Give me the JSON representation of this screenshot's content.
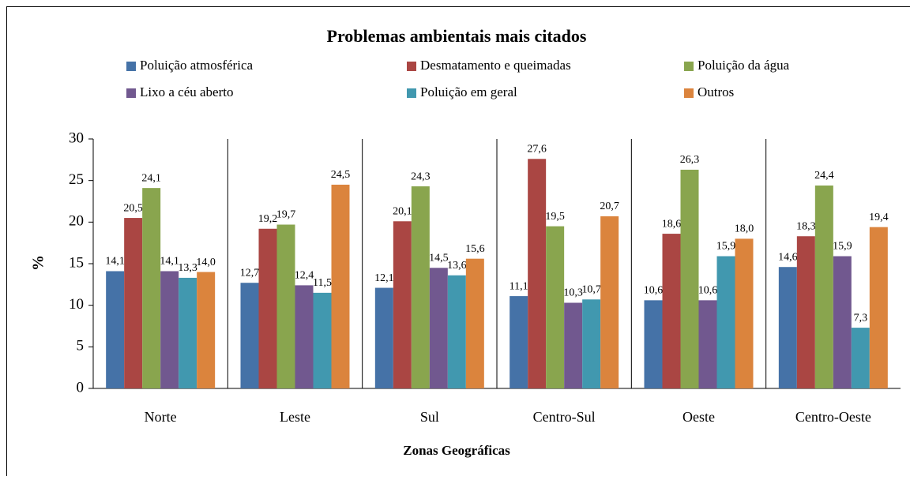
{
  "chart_data": {
    "type": "bar",
    "title": "Problemas ambientais mais citados",
    "x_label": "Zonas Geográficas",
    "y_label": "%",
    "categories": [
      "Norte",
      "Leste",
      "Sul",
      "Centro-Sul",
      "Oeste",
      "Centro-Oeste"
    ],
    "ylim": [
      0,
      30
    ],
    "yticks": [
      0,
      5,
      10,
      15,
      20,
      25,
      30
    ],
    "grid": false,
    "series": [
      {
        "name": "Poluição atmosférica",
        "color": "#4572a7",
        "values": [
          14.1,
          12.7,
          12.1,
          11.1,
          10.6,
          14.6
        ],
        "value_labels": [
          "14,1",
          "12,7",
          "12,1",
          "11,1",
          "10,6",
          "14,6"
        ]
      },
      {
        "name": "Desmatamento e queimadas",
        "color": "#aa4643",
        "values": [
          20.5,
          19.2,
          20.1,
          27.6,
          18.6,
          18.3
        ],
        "value_labels": [
          "20,5",
          "19,2",
          "20,1",
          "27,6",
          "18,6",
          "18,3"
        ]
      },
      {
        "name": "Poluição da água",
        "color": "#89a54e",
        "values": [
          24.1,
          19.7,
          24.3,
          19.5,
          26.3,
          24.4
        ],
        "value_labels": [
          "24,1",
          "19,7",
          "24,3",
          "19,5",
          "26,3",
          "24,4"
        ]
      },
      {
        "name": "Lixo a céu aberto",
        "color": "#71588f",
        "values": [
          14.1,
          12.4,
          14.5,
          10.3,
          10.6,
          15.9
        ],
        "value_labels": [
          "14,1",
          "12,4",
          "14,5",
          "10,3",
          "10,6",
          "15,9"
        ]
      },
      {
        "name": "Poluição em geral",
        "color": "#4198af",
        "values": [
          13.3,
          11.5,
          13.6,
          10.7,
          15.9,
          7.3
        ],
        "value_labels": [
          "13,3",
          "11,5",
          "13,6",
          "10,7",
          "15,9",
          "7,3"
        ]
      },
      {
        "name": "Outros",
        "color": "#db843d",
        "values": [
          14.0,
          24.5,
          15.6,
          20.7,
          18.0,
          19.4
        ],
        "value_labels": [
          "14,0",
          "24,5",
          "15,6",
          "20,7",
          "18,0",
          "19,4"
        ]
      }
    ]
  }
}
